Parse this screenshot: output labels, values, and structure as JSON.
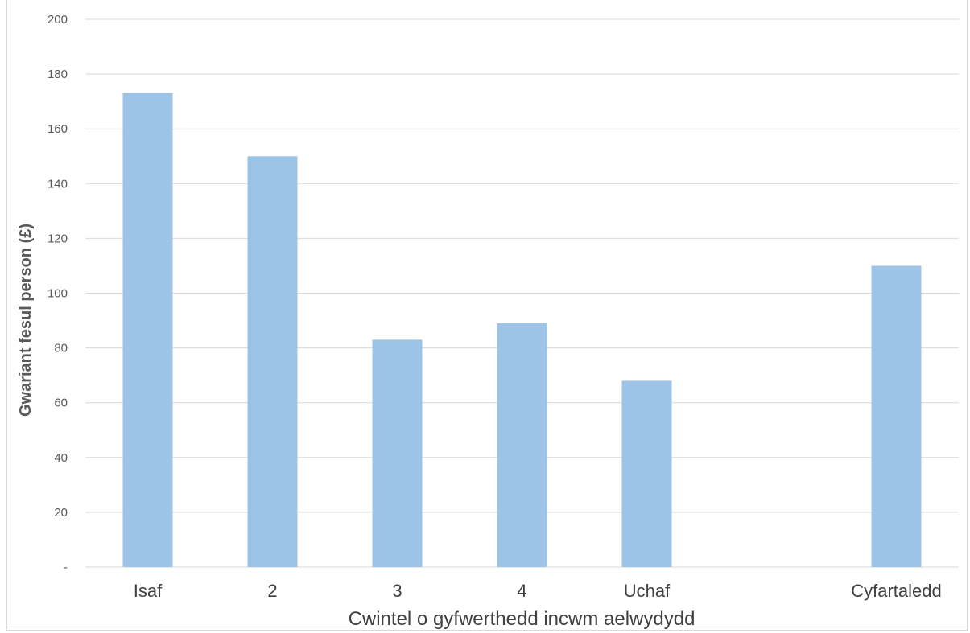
{
  "chart_data": {
    "type": "bar",
    "title": "",
    "xlabel": "Cwintel o gyfwerthedd incwm aelwydydd",
    "ylabel": "Gwariant fesul person (£)",
    "categories": [
      "Isaf",
      "2",
      "3",
      "4",
      "Uchaf",
      "",
      "Cyfartaledd"
    ],
    "values": [
      173,
      150,
      83,
      89,
      68,
      null,
      110
    ],
    "ylim": [
      0,
      200
    ],
    "yticks": [
      0,
      20,
      40,
      60,
      80,
      100,
      120,
      140,
      160,
      180,
      200
    ],
    "ytick_labels": [
      "-",
      "20",
      "40",
      "60",
      "80",
      "100",
      "120",
      "140",
      "160",
      "180",
      "200"
    ],
    "grid": true,
    "legend": "none",
    "bar_color": "#9dc3e6"
  }
}
